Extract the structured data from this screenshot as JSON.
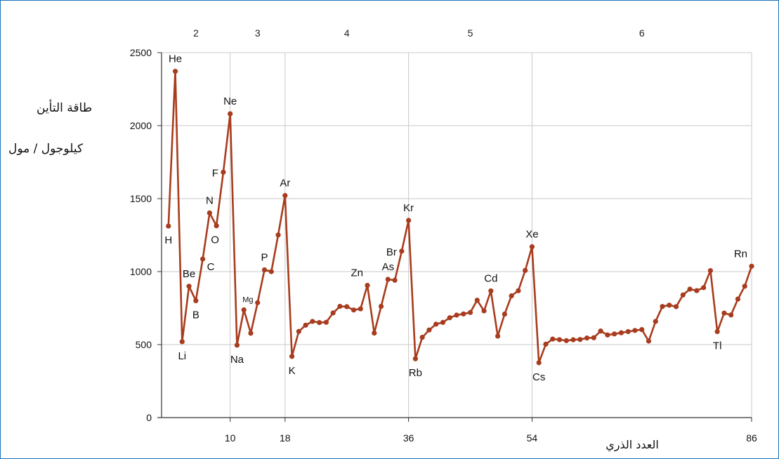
{
  "chart_data": {
    "type": "line",
    "ylabel_lines": [
      "طاقة التأين",
      "كيلوجول / مول"
    ],
    "xlabel": "العدد الذري",
    "ylim": [
      0,
      2500
    ],
    "xlim": [
      0,
      86
    ],
    "yticks": [
      0,
      500,
      1000,
      1500,
      2000,
      2500
    ],
    "xticks": [
      10,
      18,
      36,
      54,
      86
    ],
    "grid": true,
    "line_color": "#a83c1e",
    "grid_color": "#c8c8c8",
    "periods": [
      {
        "label": "2",
        "x": 5
      },
      {
        "label": "3",
        "x": 14
      },
      {
        "label": "4",
        "x": 27
      },
      {
        "label": "5",
        "x": 45
      },
      {
        "label": "6",
        "x": 70
      }
    ],
    "x": [
      1,
      2,
      3,
      4,
      5,
      6,
      7,
      8,
      9,
      10,
      11,
      12,
      13,
      14,
      15,
      16,
      17,
      18,
      19,
      20,
      21,
      22,
      23,
      24,
      25,
      26,
      27,
      28,
      29,
      30,
      31,
      32,
      33,
      34,
      35,
      36,
      37,
      38,
      39,
      40,
      41,
      42,
      43,
      44,
      45,
      46,
      47,
      48,
      49,
      50,
      51,
      52,
      53,
      54,
      55,
      56,
      57,
      58,
      59,
      60,
      61,
      62,
      63,
      64,
      65,
      66,
      67,
      68,
      69,
      70,
      71,
      72,
      73,
      74,
      75,
      76,
      77,
      78,
      79,
      80,
      81,
      82,
      83,
      84,
      85,
      86
    ],
    "values": [
      1312,
      2372,
      520,
      900,
      801,
      1086,
      1402,
      1314,
      1681,
      2081,
      496,
      738,
      578,
      787,
      1012,
      1000,
      1251,
      1521,
      419,
      590,
      633,
      659,
      651,
      653,
      717,
      762,
      760,
      737,
      745,
      906,
      579,
      762,
      947,
      941,
      1140,
      1351,
      403,
      550,
      600,
      640,
      652,
      684,
      702,
      710,
      720,
      804,
      731,
      868,
      558,
      709,
      834,
      869,
      1008,
      1170,
      376,
      503,
      538,
      534,
      527,
      533,
      535,
      545,
      547,
      593,
      566,
      573,
      581,
      589,
      597,
      603,
      524,
      659,
      761,
      770,
      760,
      840,
      880,
      870,
      890,
      1007,
      589,
      716,
      703,
      812,
      900,
      1037
    ],
    "element_labels": [
      {
        "text": "H",
        "x": 1,
        "y": 1312,
        "pos": "below"
      },
      {
        "text": "He",
        "x": 2,
        "y": 2372,
        "pos": "above"
      },
      {
        "text": "Li",
        "x": 3,
        "y": 520,
        "pos": "below"
      },
      {
        "text": "Be",
        "x": 4,
        "y": 900,
        "pos": "above"
      },
      {
        "text": "B",
        "x": 5,
        "y": 801,
        "pos": "below"
      },
      {
        "text": "C",
        "x": 6,
        "y": 1086,
        "pos": "right-below"
      },
      {
        "text": "N",
        "x": 7,
        "y": 1402,
        "pos": "above"
      },
      {
        "text": "O",
        "x": 8,
        "y": 1314,
        "pos": "below-left"
      },
      {
        "text": "F",
        "x": 9,
        "y": 1681,
        "pos": "left"
      },
      {
        "text": "Ne",
        "x": 10,
        "y": 2081,
        "pos": "above"
      },
      {
        "text": "Na",
        "x": 11,
        "y": 496,
        "pos": "below"
      },
      {
        "text": "Mg",
        "x": 12,
        "y": 738,
        "pos": "small-above"
      },
      {
        "text": "P",
        "x": 15,
        "y": 1012,
        "pos": "above"
      },
      {
        "text": "Ar",
        "x": 18,
        "y": 1521,
        "pos": "above"
      },
      {
        "text": "K",
        "x": 19,
        "y": 419,
        "pos": "below"
      },
      {
        "text": "Zn",
        "x": 30,
        "y": 906,
        "pos": "above-left"
      },
      {
        "text": "As",
        "x": 33,
        "y": 947,
        "pos": "above"
      },
      {
        "text": "Br",
        "x": 35,
        "y": 1140,
        "pos": "left"
      },
      {
        "text": "Kr",
        "x": 36,
        "y": 1351,
        "pos": "above"
      },
      {
        "text": "Rb",
        "x": 37,
        "y": 403,
        "pos": "below"
      },
      {
        "text": "Cd",
        "x": 48,
        "y": 868,
        "pos": "above"
      },
      {
        "text": "Xe",
        "x": 54,
        "y": 1170,
        "pos": "above"
      },
      {
        "text": "Cs",
        "x": 55,
        "y": 376,
        "pos": "below"
      },
      {
        "text": "Tl",
        "x": 81,
        "y": 589,
        "pos": "below"
      },
      {
        "text": "Rn",
        "x": 86,
        "y": 1037,
        "pos": "above-left"
      }
    ]
  }
}
